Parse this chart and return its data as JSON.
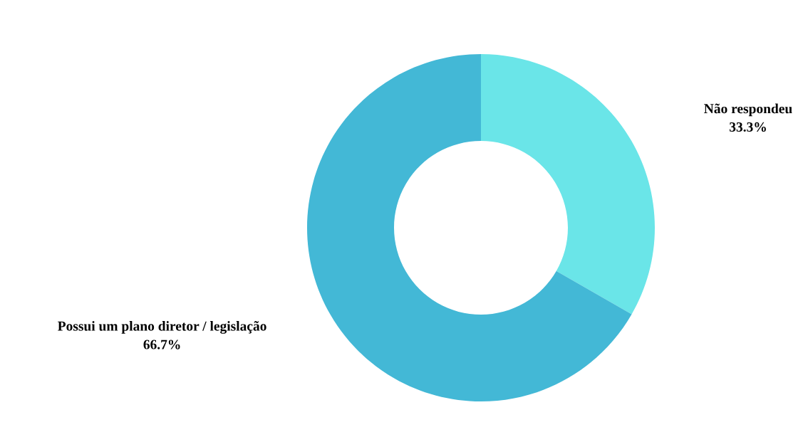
{
  "chart_data": {
    "type": "donut",
    "categories": [
      "Não respondeu",
      "Possui um plano diretor / legislação"
    ],
    "values": [
      33.3,
      66.7
    ],
    "colors": [
      "#6ae5e8",
      "#43b8d6"
    ],
    "value_labels": [
      "33.3%",
      "66.7%"
    ],
    "legend": false
  }
}
